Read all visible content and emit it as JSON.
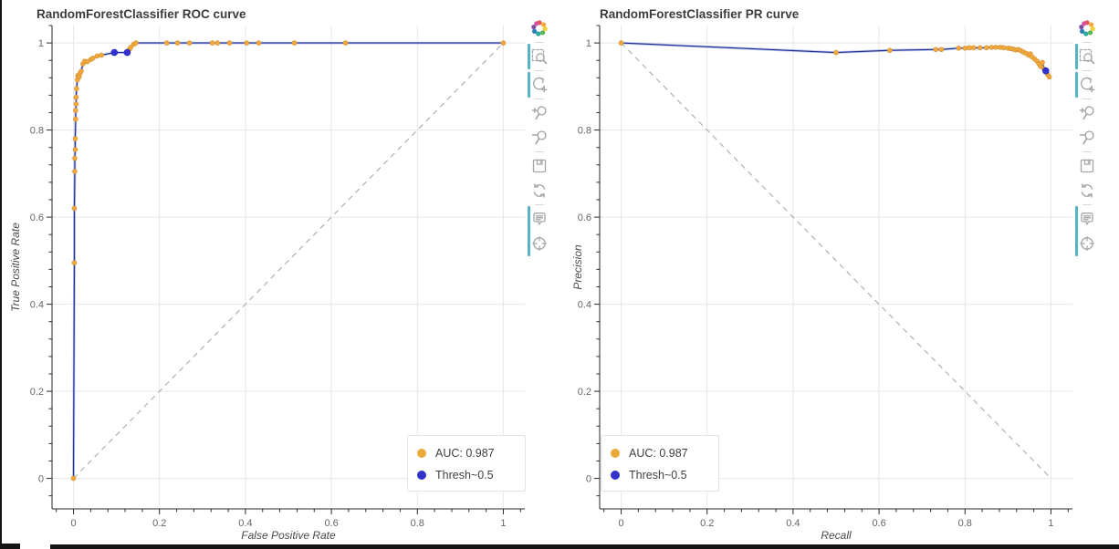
{
  "window": {
    "background": "#ffffff",
    "frame_edge_color": "#141414"
  },
  "toolbar": {
    "icon_color": "#a6a6a6",
    "active_color": "#58b4c2",
    "logo": {
      "name": "bokeh-logo",
      "label": "Bokeh"
    },
    "tools": [
      {
        "name": "box-zoom",
        "label": "Box Zoom",
        "active": true,
        "sep_after": true
      },
      {
        "name": "wheel-zoom",
        "label": "Wheel Zoom",
        "active": true,
        "sep_after": true
      },
      {
        "name": "zoom-in",
        "label": "Zoom In",
        "active": false,
        "sep_after": false
      },
      {
        "name": "zoom-out",
        "label": "Zoom Out",
        "active": false,
        "sep_after": true
      },
      {
        "name": "save",
        "label": "Save",
        "active": false,
        "sep_after": false
      },
      {
        "name": "reset",
        "label": "Reset",
        "active": false,
        "sep_after": true
      },
      {
        "name": "hover",
        "label": "Hover",
        "active": true,
        "sep_after": false
      },
      {
        "name": "crosshair",
        "label": "Crosshair",
        "active": true,
        "sep_after": false
      }
    ]
  },
  "chart_data": [
    {
      "type": "line",
      "title": "RandomForestClassifier ROC curve",
      "xlabel": "False Positive Rate",
      "ylabel": "True Positive Rate",
      "xlim": [
        -0.05,
        1.05
      ],
      "ylim": [
        -0.07,
        1.04
      ],
      "grid": true,
      "xticks": {
        "values": [
          0,
          0.2,
          0.4,
          0.6,
          0.8,
          1
        ],
        "labels": [
          "0",
          "0.2",
          "0.4",
          "0.6",
          "0.8",
          "1"
        ]
      },
      "yticks": {
        "values": [
          0,
          0.2,
          0.4,
          0.6,
          0.8,
          1
        ],
        "labels": [
          "0",
          "0.2",
          "0.4",
          "0.6",
          "0.8",
          "1"
        ]
      },
      "reference_line": {
        "from": [
          0,
          0
        ],
        "to": [
          1,
          1
        ],
        "style": "dashed",
        "color": "#b0b0b0"
      },
      "auc": "0.987",
      "series": [
        {
          "name": "ROC curve (AUC: 0.987)",
          "line_color": "#1c2d94",
          "glow_color": "#8b9bd9",
          "marker_color": "#f2a83b",
          "marker_edge": "#d29134",
          "marker_size": 5,
          "points": [
            [
              0,
              0
            ],
            [
              0.002,
              0.495
            ],
            [
              0.002,
              0.62
            ],
            [
              0.003,
              0.705
            ],
            [
              0.003,
              0.735
            ],
            [
              0.004,
              0.755
            ],
            [
              0.004,
              0.78
            ],
            [
              0.005,
              0.825
            ],
            [
              0.005,
              0.845
            ],
            [
              0.006,
              0.86
            ],
            [
              0.006,
              0.875
            ],
            [
              0.007,
              0.895
            ],
            [
              0.009,
              0.915
            ],
            [
              0.01,
              0.925
            ],
            [
              0.013,
              0.922
            ],
            [
              0.015,
              0.93
            ],
            [
              0.018,
              0.935
            ],
            [
              0.022,
              0.952
            ],
            [
              0.026,
              0.958
            ],
            [
              0.032,
              0.957
            ],
            [
              0.04,
              0.962
            ],
            [
              0.045,
              0.965
            ],
            [
              0.055,
              0.97
            ],
            [
              0.065,
              0.972
            ],
            [
              0.095,
              0.978
            ],
            [
              0.125,
              0.978
            ],
            [
              0.13,
              0.985
            ],
            [
              0.133,
              0.99
            ],
            [
              0.14,
              0.997
            ],
            [
              0.145,
              1
            ],
            [
              0.217,
              1
            ],
            [
              0.242,
              1
            ],
            [
              0.27,
              1
            ],
            [
              0.323,
              1
            ],
            [
              0.335,
              1
            ],
            [
              0.363,
              1
            ],
            [
              0.403,
              1
            ],
            [
              0.431,
              1
            ],
            [
              0.514,
              1
            ],
            [
              0.633,
              1
            ],
            [
              1,
              1
            ]
          ]
        },
        {
          "name": "Thresh~0.5",
          "marker_color": "#3232d2",
          "marker_edge": "#2323b8",
          "marker_size": 7,
          "points": [
            [
              0.095,
              0.978
            ],
            [
              0.125,
              0.978
            ]
          ]
        }
      ],
      "legend": {
        "position": "bottom-right",
        "entries": [
          {
            "label": "AUC: 0.987",
            "color": "#eba93b"
          },
          {
            "label": "Thresh~0.5",
            "color": "#3333cc"
          }
        ]
      }
    },
    {
      "type": "line",
      "title": "RandomForestClassifier PR curve",
      "xlabel": "Recall",
      "ylabel": "Precision",
      "xlim": [
        -0.05,
        1.05
      ],
      "ylim": [
        -0.07,
        1.04
      ],
      "grid": true,
      "xticks": {
        "values": [
          0,
          0.2,
          0.4,
          0.6,
          0.8,
          1
        ],
        "labels": [
          "0",
          "0.2",
          "0.4",
          "0.6",
          "0.8",
          "1"
        ]
      },
      "yticks": {
        "values": [
          0,
          0.2,
          0.4,
          0.6,
          0.8,
          1
        ],
        "labels": [
          "0",
          "0.2",
          "0.4",
          "0.6",
          "0.8",
          "1"
        ]
      },
      "reference_line": {
        "from": [
          0,
          1
        ],
        "to": [
          1,
          0
        ],
        "style": "dashed",
        "color": "#b0b0b0"
      },
      "auc": "0.987",
      "series": [
        {
          "name": "PR curve (AUC: 0.987)",
          "line_color": "#1c2d94",
          "glow_color": "#8b9bd9",
          "marker_color": "#f2a83b",
          "marker_edge": "#d29134",
          "marker_size": 5,
          "points": [
            [
              0,
              1
            ],
            [
              0.5,
              0.978
            ],
            [
              0.625,
              0.983
            ],
            [
              0.732,
              0.985
            ],
            [
              0.745,
              0.985
            ],
            [
              0.785,
              0.988
            ],
            [
              0.8,
              0.988
            ],
            [
              0.81,
              0.989
            ],
            [
              0.82,
              0.989
            ],
            [
              0.835,
              0.989
            ],
            [
              0.85,
              0.989
            ],
            [
              0.862,
              0.99
            ],
            [
              0.872,
              0.99
            ],
            [
              0.882,
              0.99
            ],
            [
              0.89,
              0.989
            ],
            [
              0.9,
              0.988
            ],
            [
              0.906,
              0.987
            ],
            [
              0.912,
              0.986
            ],
            [
              0.918,
              0.984
            ],
            [
              0.924,
              0.985
            ],
            [
              0.93,
              0.982
            ],
            [
              0.936,
              0.979
            ],
            [
              0.942,
              0.976
            ],
            [
              0.948,
              0.972
            ],
            [
              0.952,
              0.975
            ],
            [
              0.956,
              0.968
            ],
            [
              0.962,
              0.963
            ],
            [
              0.968,
              0.958
            ],
            [
              0.972,
              0.952
            ],
            [
              0.976,
              0.946
            ],
            [
              0.98,
              0.955
            ],
            [
              0.984,
              0.94
            ],
            [
              0.988,
              0.936
            ],
            [
              0.992,
              0.928
            ],
            [
              0.996,
              0.922
            ]
          ]
        },
        {
          "name": "Thresh~0.5",
          "marker_color": "#3232d2",
          "marker_edge": "#2323b8",
          "marker_size": 7,
          "points": [
            [
              0.988,
              0.936
            ]
          ]
        }
      ],
      "legend": {
        "position": "bottom-left",
        "entries": [
          {
            "label": "AUC: 0.987",
            "color": "#eba93b"
          },
          {
            "label": "Thresh~0.5",
            "color": "#3333cc"
          }
        ]
      }
    }
  ]
}
